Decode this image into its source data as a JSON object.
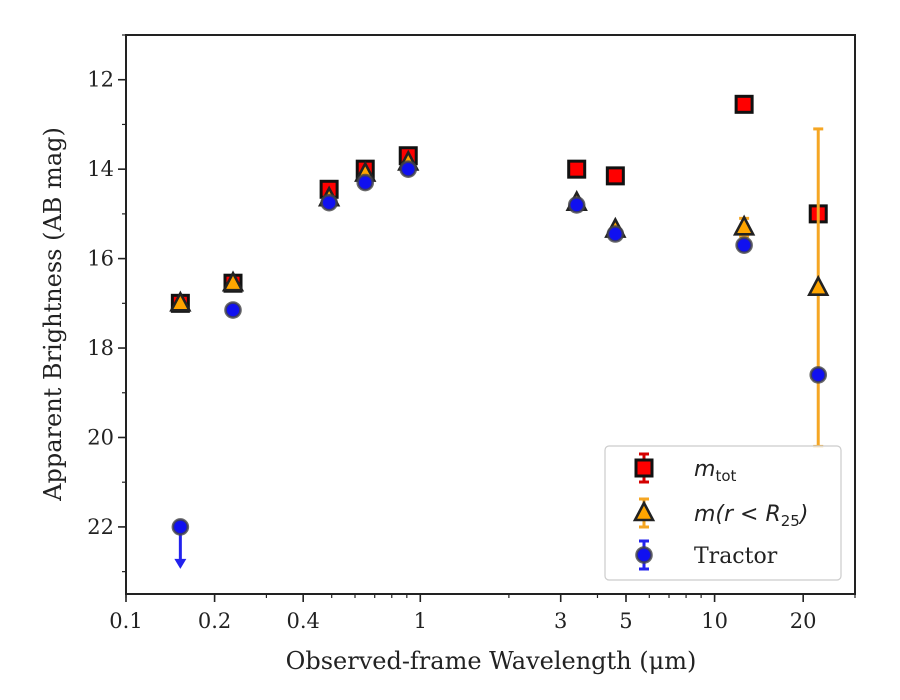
{
  "chart_data": {
    "type": "scatter",
    "xlabel": "Observed-frame Wavelength (μm)",
    "ylabel": "Apparent Brightness (AB mag)",
    "x_scale": "log",
    "xlim": [
      0.1,
      30
    ],
    "ylim": [
      23.5,
      11.0
    ],
    "y_inverted": true,
    "x_ticks": [
      {
        "value": 0.1,
        "label": "0.1"
      },
      {
        "value": 0.2,
        "label": "0.2"
      },
      {
        "value": 0.4,
        "label": "0.4"
      },
      {
        "value": 1,
        "label": "1"
      },
      {
        "value": 3,
        "label": "3"
      },
      {
        "value": 5,
        "label": "5"
      },
      {
        "value": 10,
        "label": "10"
      },
      {
        "value": 20,
        "label": "20"
      }
    ],
    "y_ticks": [
      {
        "value": 12,
        "label": "12"
      },
      {
        "value": 14,
        "label": "14"
      },
      {
        "value": 16,
        "label": "16"
      },
      {
        "value": 18,
        "label": "18"
      },
      {
        "value": 20,
        "label": "20"
      },
      {
        "value": 22,
        "label": "22"
      }
    ],
    "grid": false,
    "legend_position": "bottom-right",
    "series": [
      {
        "name": "m_tot",
        "legend_main": "m",
        "legend_sub": "tot",
        "marker": "square",
        "color": "#ff0000",
        "edge_color": "#111111",
        "errorbar_color": "#d40000",
        "points": [
          {
            "x": 0.153,
            "y": 17.0,
            "err": 0.1
          },
          {
            "x": 0.231,
            "y": 16.55,
            "err": 0.1
          },
          {
            "x": 0.49,
            "y": 14.45,
            "err": 0.05
          },
          {
            "x": 0.65,
            "y": 14.0,
            "err": 0.05
          },
          {
            "x": 0.91,
            "y": 13.7,
            "err": 0.05
          },
          {
            "x": 3.4,
            "y": 14.0,
            "err": 0.05
          },
          {
            "x": 4.6,
            "y": 14.15,
            "err": 0.05
          },
          {
            "x": 12.6,
            "y": 12.55,
            "err": 0.05
          },
          {
            "x": 22.5,
            "y": 15.0,
            "err": 0.05
          }
        ]
      },
      {
        "name": "m(r<R_25)",
        "legend_text": "m(r < R",
        "legend_sub": "25",
        "legend_close": ")",
        "marker": "triangle",
        "color": "#ffa500",
        "edge_color": "#222222",
        "errorbar_color": "#f5a623",
        "points": [
          {
            "x": 0.153,
            "y": 17.0,
            "err": 0.05
          },
          {
            "x": 0.231,
            "y": 16.55,
            "err": 0.05
          },
          {
            "x": 0.49,
            "y": 14.65,
            "err": 0.05
          },
          {
            "x": 0.65,
            "y": 14.1,
            "err": 0.05
          },
          {
            "x": 0.91,
            "y": 13.85,
            "err": 0.05
          },
          {
            "x": 3.4,
            "y": 14.75,
            "err": 0.05
          },
          {
            "x": 4.6,
            "y": 15.35,
            "err": 0.05
          },
          {
            "x": 12.6,
            "y": 15.3,
            "err": 0.2
          },
          {
            "x": 22.5,
            "y": 16.65,
            "err": 3.55
          }
        ]
      },
      {
        "name": "Tractor",
        "legend_text": "Tractor",
        "marker": "circle",
        "color": "#1010f0",
        "edge_color": "#444444",
        "errorbar_color": "#2222ee",
        "points": [
          {
            "x": 0.153,
            "y": 22.0,
            "err": 0.0,
            "upper_limit": true
          },
          {
            "x": 0.231,
            "y": 17.15,
            "err": 0.05
          },
          {
            "x": 0.49,
            "y": 14.75,
            "err": 0.05
          },
          {
            "x": 0.65,
            "y": 14.3,
            "err": 0.05
          },
          {
            "x": 0.91,
            "y": 14.0,
            "err": 0.05
          },
          {
            "x": 3.4,
            "y": 14.8,
            "err": 0.05
          },
          {
            "x": 4.6,
            "y": 15.45,
            "err": 0.05
          },
          {
            "x": 12.6,
            "y": 15.7,
            "err": 0.05
          },
          {
            "x": 22.5,
            "y": 18.6,
            "err": 0.1
          }
        ]
      }
    ]
  }
}
